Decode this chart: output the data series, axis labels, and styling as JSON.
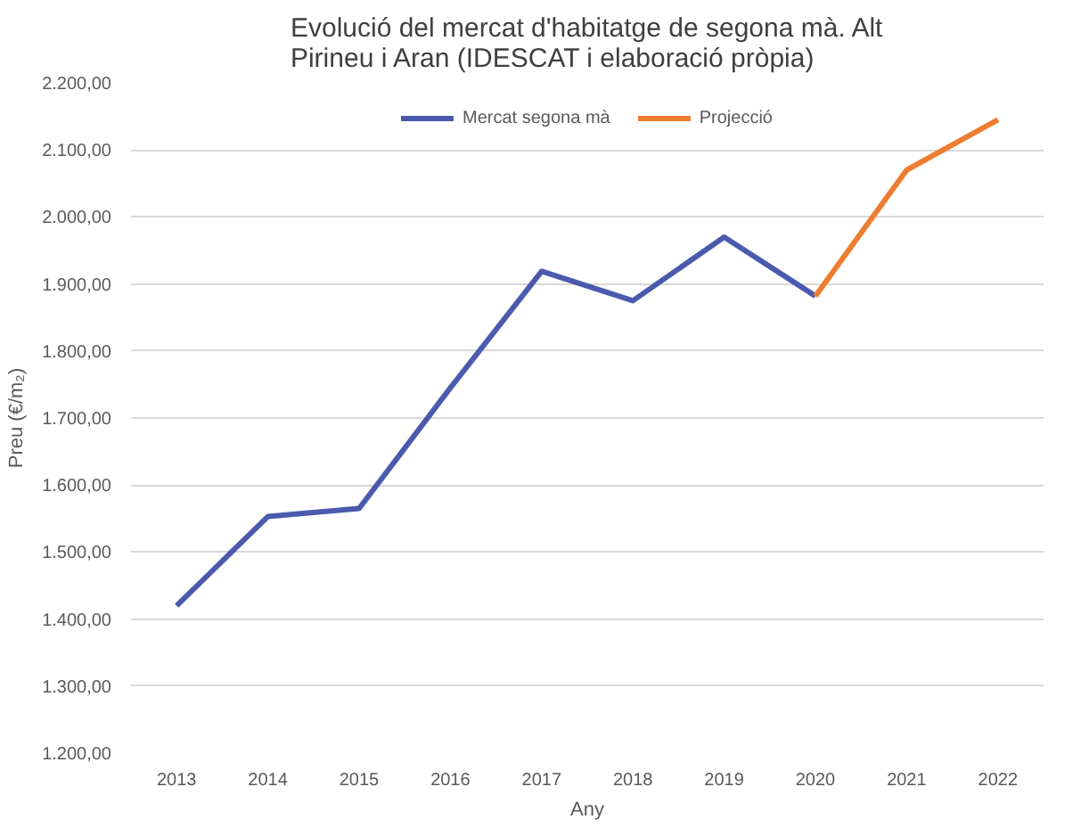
{
  "chart_data": {
    "type": "line",
    "title": "Evolució del mercat d'habitatge de segona mà. Alt Pirineu i Aran (IDESCAT i elaboració pròpia)",
    "xlabel": "Any",
    "ylabel": "Preu (€/m₂)",
    "categories": [
      "2013",
      "2014",
      "2015",
      "2016",
      "2017",
      "2018",
      "2019",
      "2020",
      "2021",
      "2022"
    ],
    "series": [
      {
        "name": "Mercat segona mà",
        "color": "#4a5aad",
        "values": [
          1420,
          1553,
          1565,
          1745,
          1919,
          1875,
          1970,
          1882,
          null,
          null
        ]
      },
      {
        "name": "Projecció",
        "color": "#ed7d31",
        "values": [
          null,
          null,
          null,
          null,
          null,
          null,
          null,
          1882,
          2070,
          2145
        ]
      }
    ],
    "ylim": [
      1200,
      2200
    ],
    "yticks": [
      {
        "value": 1200,
        "label": "1.200,00"
      },
      {
        "value": 1300,
        "label": "1.300,00"
      },
      {
        "value": 1400,
        "label": "1.400,00"
      },
      {
        "value": 1500,
        "label": "1.500,00"
      },
      {
        "value": 1600,
        "label": "1.600,00"
      },
      {
        "value": 1700,
        "label": "1.700,00"
      },
      {
        "value": 1800,
        "label": "1.800,00"
      },
      {
        "value": 1900,
        "label": "1.900,00"
      },
      {
        "value": 2000,
        "label": "2.000,00"
      },
      {
        "value": 2100,
        "label": "2.100,00"
      },
      {
        "value": 2200,
        "label": "2.200,00"
      }
    ],
    "grid": "y",
    "legend": "top",
    "marker": "none",
    "line_style": "solid"
  }
}
